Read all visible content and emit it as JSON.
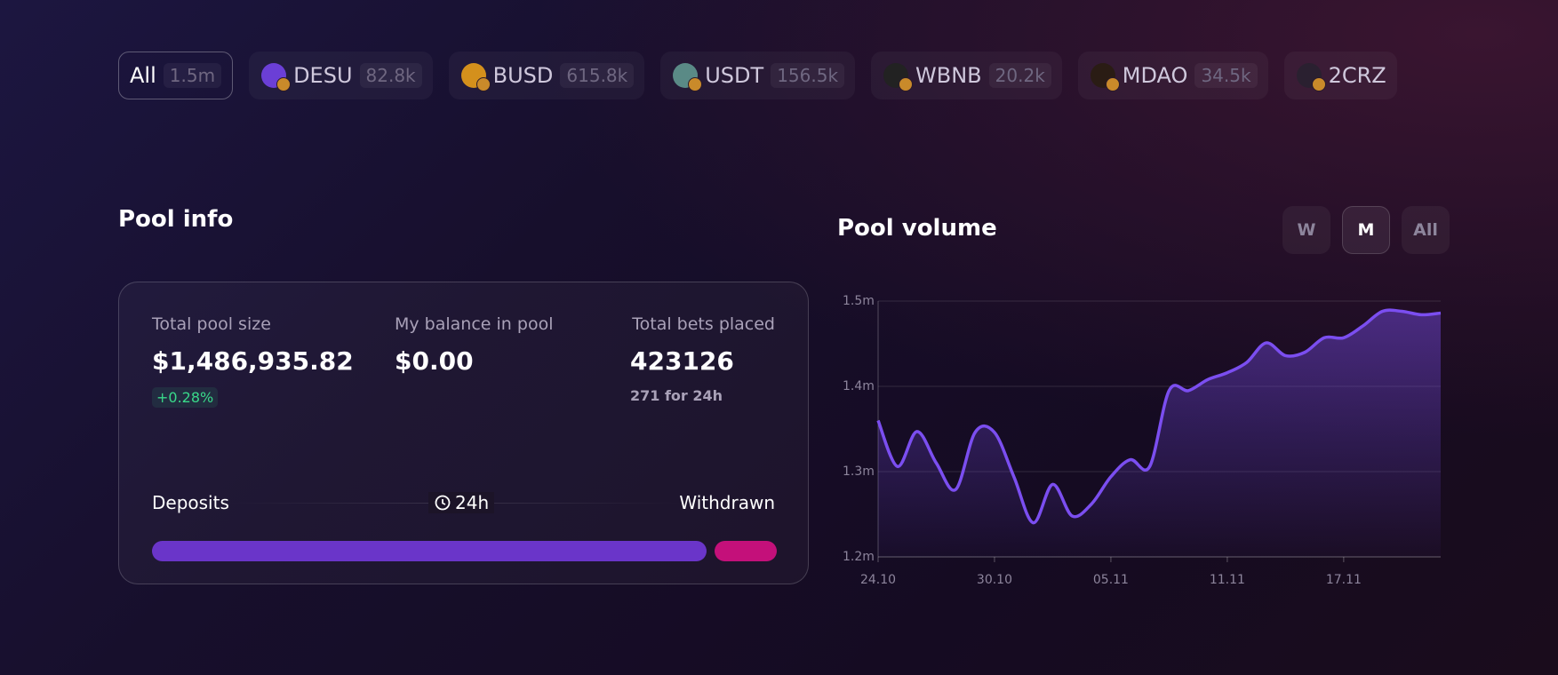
{
  "tabs": [
    {
      "name": "All",
      "count": "1.5m"
    },
    {
      "name": "DESU",
      "count": "82.8k"
    },
    {
      "name": "BUSD",
      "count": "615.8k"
    },
    {
      "name": "USDT",
      "count": "156.5k"
    },
    {
      "name": "WBNB",
      "count": "20.2k"
    },
    {
      "name": "MDAO",
      "count": "34.5k"
    },
    {
      "name": "2CRZ"
    }
  ],
  "active_tab": "All",
  "pool_info": {
    "title": "Pool info",
    "stats": [
      {
        "label": "Total pool size",
        "value": "$1,486,935.82",
        "change": "+0.28%"
      },
      {
        "label": "My balance in pool",
        "value": "$0.00"
      },
      {
        "label": "Total bets placed",
        "value": "423126",
        "note": "271 for 24h"
      }
    ],
    "deposits": "Deposits",
    "period": "24h",
    "withdrawn": "Withdrawn"
  },
  "chart_data": {
    "type": "area",
    "title": "Pool volume",
    "periods": [
      "W",
      "M",
      "All"
    ],
    "active_period": "M",
    "categories": [
      "24.10",
      null,
      null,
      null,
      null,
      null,
      "30.10",
      null,
      null,
      null,
      null,
      null,
      "05.11",
      null,
      null,
      null,
      null,
      null,
      "11.11",
      null,
      null,
      null,
      null,
      null,
      "17.11",
      null,
      null,
      null,
      null,
      null
    ],
    "values": [
      1.36,
      1.306,
      1.347,
      1.31,
      1.279,
      1.346,
      1.346,
      1.294,
      1.24,
      1.285,
      1.248,
      1.262,
      1.294,
      1.314,
      1.306,
      1.395,
      1.395,
      1.408,
      1.416,
      1.428,
      1.451,
      1.436,
      1.44,
      1.457,
      1.457,
      1.471,
      1.488,
      1.488,
      1.484,
      1.486
    ],
    "color": "#7b4ef0",
    "ylim": [
      1.2,
      1.5
    ],
    "yticks": [
      {
        "value": 1.2,
        "label": "1.2m"
      },
      {
        "value": 1.3,
        "label": "1.3m"
      },
      {
        "value": 1.4,
        "label": "1.4m"
      },
      {
        "value": 1.5,
        "label": "1.5m"
      }
    ],
    "grid": true
  }
}
